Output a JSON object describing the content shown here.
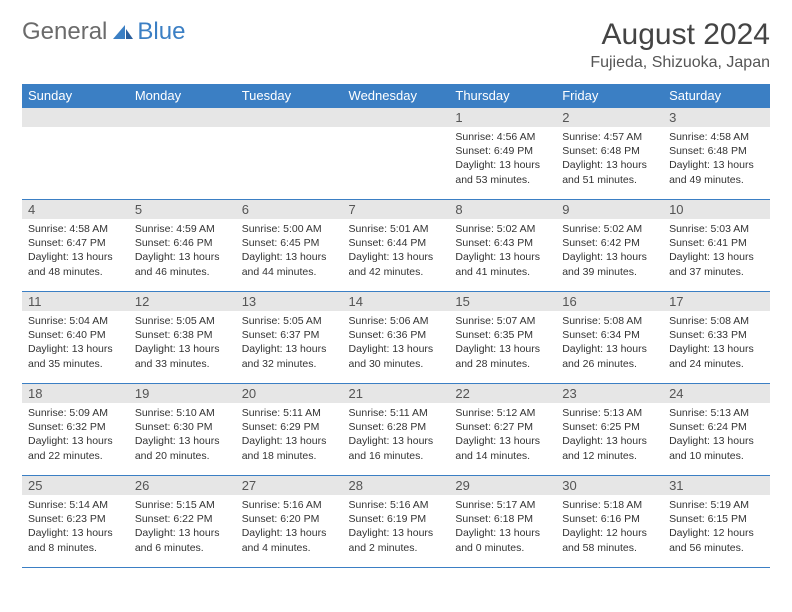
{
  "logo": {
    "general": "General",
    "blue": "Blue"
  },
  "title": "August 2024",
  "location": "Fujieda, Shizuoka, Japan",
  "colors": {
    "header_bg": "#3b7fc4",
    "daynum_bg": "#e6e6e6",
    "border": "#3b7fc4",
    "text": "#333333",
    "logo_gray": "#6b6b6b",
    "logo_blue": "#3b7fc4"
  },
  "weekdays": [
    "Sunday",
    "Monday",
    "Tuesday",
    "Wednesday",
    "Thursday",
    "Friday",
    "Saturday"
  ],
  "weeks": [
    [
      {
        "n": "",
        "sr": "",
        "ss": "",
        "dl": ""
      },
      {
        "n": "",
        "sr": "",
        "ss": "",
        "dl": ""
      },
      {
        "n": "",
        "sr": "",
        "ss": "",
        "dl": ""
      },
      {
        "n": "",
        "sr": "",
        "ss": "",
        "dl": ""
      },
      {
        "n": "1",
        "sr": "Sunrise: 4:56 AM",
        "ss": "Sunset: 6:49 PM",
        "dl": "Daylight: 13 hours and 53 minutes."
      },
      {
        "n": "2",
        "sr": "Sunrise: 4:57 AM",
        "ss": "Sunset: 6:48 PM",
        "dl": "Daylight: 13 hours and 51 minutes."
      },
      {
        "n": "3",
        "sr": "Sunrise: 4:58 AM",
        "ss": "Sunset: 6:48 PM",
        "dl": "Daylight: 13 hours and 49 minutes."
      }
    ],
    [
      {
        "n": "4",
        "sr": "Sunrise: 4:58 AM",
        "ss": "Sunset: 6:47 PM",
        "dl": "Daylight: 13 hours and 48 minutes."
      },
      {
        "n": "5",
        "sr": "Sunrise: 4:59 AM",
        "ss": "Sunset: 6:46 PM",
        "dl": "Daylight: 13 hours and 46 minutes."
      },
      {
        "n": "6",
        "sr": "Sunrise: 5:00 AM",
        "ss": "Sunset: 6:45 PM",
        "dl": "Daylight: 13 hours and 44 minutes."
      },
      {
        "n": "7",
        "sr": "Sunrise: 5:01 AM",
        "ss": "Sunset: 6:44 PM",
        "dl": "Daylight: 13 hours and 42 minutes."
      },
      {
        "n": "8",
        "sr": "Sunrise: 5:02 AM",
        "ss": "Sunset: 6:43 PM",
        "dl": "Daylight: 13 hours and 41 minutes."
      },
      {
        "n": "9",
        "sr": "Sunrise: 5:02 AM",
        "ss": "Sunset: 6:42 PM",
        "dl": "Daylight: 13 hours and 39 minutes."
      },
      {
        "n": "10",
        "sr": "Sunrise: 5:03 AM",
        "ss": "Sunset: 6:41 PM",
        "dl": "Daylight: 13 hours and 37 minutes."
      }
    ],
    [
      {
        "n": "11",
        "sr": "Sunrise: 5:04 AM",
        "ss": "Sunset: 6:40 PM",
        "dl": "Daylight: 13 hours and 35 minutes."
      },
      {
        "n": "12",
        "sr": "Sunrise: 5:05 AM",
        "ss": "Sunset: 6:38 PM",
        "dl": "Daylight: 13 hours and 33 minutes."
      },
      {
        "n": "13",
        "sr": "Sunrise: 5:05 AM",
        "ss": "Sunset: 6:37 PM",
        "dl": "Daylight: 13 hours and 32 minutes."
      },
      {
        "n": "14",
        "sr": "Sunrise: 5:06 AM",
        "ss": "Sunset: 6:36 PM",
        "dl": "Daylight: 13 hours and 30 minutes."
      },
      {
        "n": "15",
        "sr": "Sunrise: 5:07 AM",
        "ss": "Sunset: 6:35 PM",
        "dl": "Daylight: 13 hours and 28 minutes."
      },
      {
        "n": "16",
        "sr": "Sunrise: 5:08 AM",
        "ss": "Sunset: 6:34 PM",
        "dl": "Daylight: 13 hours and 26 minutes."
      },
      {
        "n": "17",
        "sr": "Sunrise: 5:08 AM",
        "ss": "Sunset: 6:33 PM",
        "dl": "Daylight: 13 hours and 24 minutes."
      }
    ],
    [
      {
        "n": "18",
        "sr": "Sunrise: 5:09 AM",
        "ss": "Sunset: 6:32 PM",
        "dl": "Daylight: 13 hours and 22 minutes."
      },
      {
        "n": "19",
        "sr": "Sunrise: 5:10 AM",
        "ss": "Sunset: 6:30 PM",
        "dl": "Daylight: 13 hours and 20 minutes."
      },
      {
        "n": "20",
        "sr": "Sunrise: 5:11 AM",
        "ss": "Sunset: 6:29 PM",
        "dl": "Daylight: 13 hours and 18 minutes."
      },
      {
        "n": "21",
        "sr": "Sunrise: 5:11 AM",
        "ss": "Sunset: 6:28 PM",
        "dl": "Daylight: 13 hours and 16 minutes."
      },
      {
        "n": "22",
        "sr": "Sunrise: 5:12 AM",
        "ss": "Sunset: 6:27 PM",
        "dl": "Daylight: 13 hours and 14 minutes."
      },
      {
        "n": "23",
        "sr": "Sunrise: 5:13 AM",
        "ss": "Sunset: 6:25 PM",
        "dl": "Daylight: 13 hours and 12 minutes."
      },
      {
        "n": "24",
        "sr": "Sunrise: 5:13 AM",
        "ss": "Sunset: 6:24 PM",
        "dl": "Daylight: 13 hours and 10 minutes."
      }
    ],
    [
      {
        "n": "25",
        "sr": "Sunrise: 5:14 AM",
        "ss": "Sunset: 6:23 PM",
        "dl": "Daylight: 13 hours and 8 minutes."
      },
      {
        "n": "26",
        "sr": "Sunrise: 5:15 AM",
        "ss": "Sunset: 6:22 PM",
        "dl": "Daylight: 13 hours and 6 minutes."
      },
      {
        "n": "27",
        "sr": "Sunrise: 5:16 AM",
        "ss": "Sunset: 6:20 PM",
        "dl": "Daylight: 13 hours and 4 minutes."
      },
      {
        "n": "28",
        "sr": "Sunrise: 5:16 AM",
        "ss": "Sunset: 6:19 PM",
        "dl": "Daylight: 13 hours and 2 minutes."
      },
      {
        "n": "29",
        "sr": "Sunrise: 5:17 AM",
        "ss": "Sunset: 6:18 PM",
        "dl": "Daylight: 13 hours and 0 minutes."
      },
      {
        "n": "30",
        "sr": "Sunrise: 5:18 AM",
        "ss": "Sunset: 6:16 PM",
        "dl": "Daylight: 12 hours and 58 minutes."
      },
      {
        "n": "31",
        "sr": "Sunrise: 5:19 AM",
        "ss": "Sunset: 6:15 PM",
        "dl": "Daylight: 12 hours and 56 minutes."
      }
    ]
  ]
}
